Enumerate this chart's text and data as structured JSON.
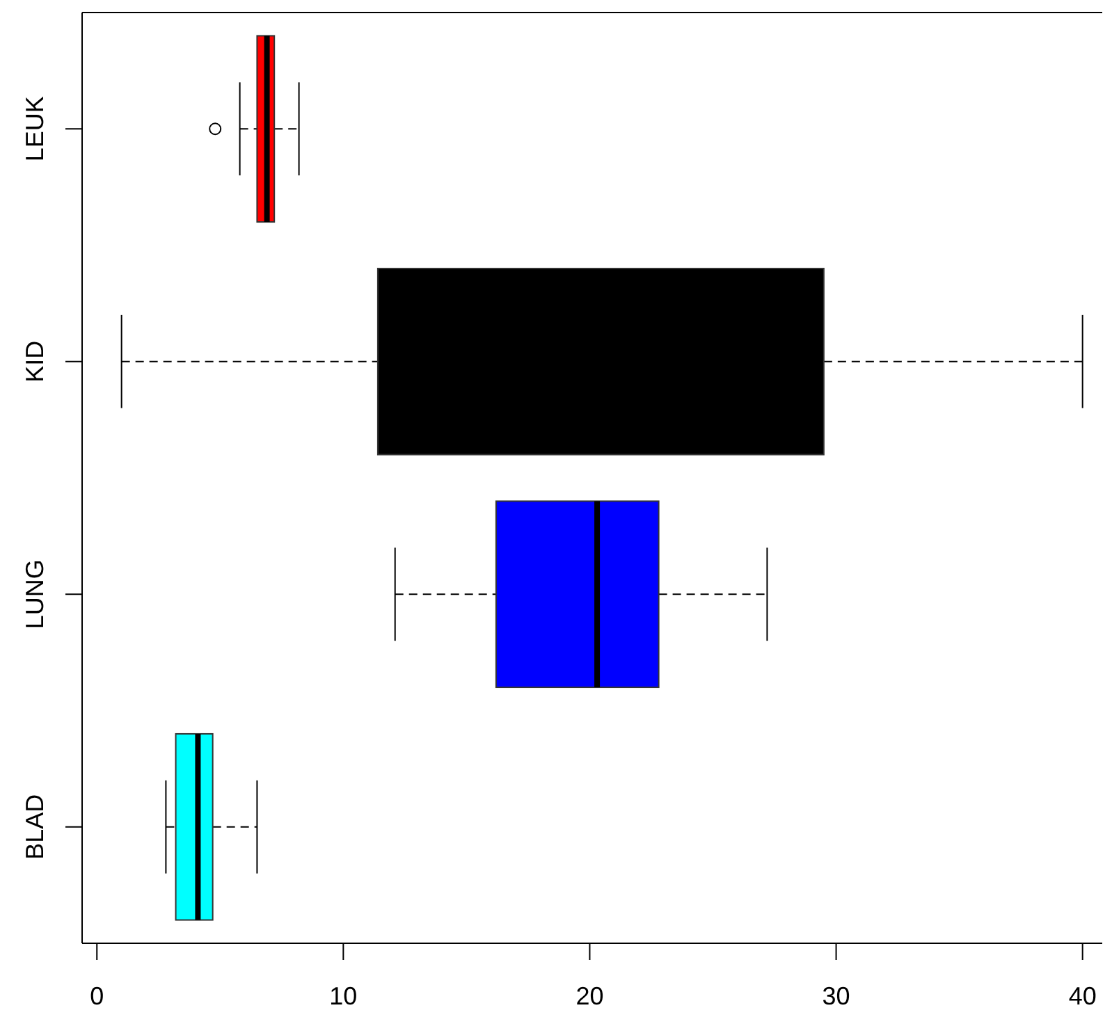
{
  "chart_data": {
    "type": "box",
    "orientation": "horizontal",
    "categories": [
      "LEUK",
      "KID",
      "LUNG",
      "BLAD"
    ],
    "colors": [
      "#ff0000",
      "#000000",
      "#0000ff",
      "#00ffff"
    ],
    "boxes": [
      {
        "low": 5.8,
        "q1": 6.5,
        "median": 6.9,
        "q3": 7.2,
        "high": 8.2,
        "outliers": [
          4.8
        ]
      },
      {
        "low": 1.0,
        "q1": 11.4,
        "median": null,
        "q3": 29.5,
        "high": 40.0
      },
      {
        "low": 12.1,
        "q1": 16.2,
        "median": 20.3,
        "q3": 22.8,
        "high": 27.2
      },
      {
        "low": 2.8,
        "q1": 3.2,
        "median": 4.1,
        "q3": 4.7,
        "high": 6.5
      }
    ],
    "xlim": [
      -0.6,
      40.8
    ],
    "xticks": [
      0,
      10,
      20,
      30,
      40
    ]
  }
}
